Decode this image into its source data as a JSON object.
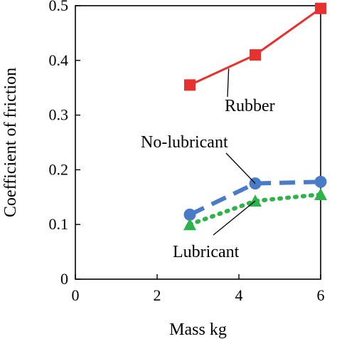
{
  "chart_data": {
    "type": "line",
    "xlabel": "Mass kg",
    "ylabel": "Coefficient of friction",
    "xlim": [
      0,
      6
    ],
    "ylim": [
      0,
      0.5
    ],
    "xticks": [
      0,
      2,
      4,
      6
    ],
    "xtick_labels": [
      "0",
      "2",
      "4",
      "6"
    ],
    "yticks": [
      0,
      0.1,
      0.2,
      0.3,
      0.4,
      0.5
    ],
    "ytick_labels": [
      "0",
      "0.1",
      "0.2",
      "0.3",
      "0.4",
      "0.5"
    ],
    "grid": false,
    "series": [
      {
        "name": "Rubber",
        "x": [
          2.8,
          4.4,
          6.0
        ],
        "y": [
          0.355,
          0.41,
          0.495
        ],
        "color": "#e8302f",
        "line_style": "solid",
        "marker": "square"
      },
      {
        "name": "No-lubricant",
        "x": [
          2.8,
          4.4,
          6.0
        ],
        "y": [
          0.118,
          0.175,
          0.178
        ],
        "color": "#4a7bc8",
        "line_style": "long-dash",
        "marker": "circle"
      },
      {
        "name": "Lubricant",
        "x": [
          2.8,
          4.4,
          6.0
        ],
        "y": [
          0.1,
          0.143,
          0.155
        ],
        "color": "#2db34a",
        "line_style": "dotted",
        "marker": "triangle"
      }
    ],
    "annotations": [
      {
        "text": "Rubber",
        "target_series": "Rubber",
        "target_x": 3.75,
        "target_y": 0.385
      },
      {
        "text": "No-lubricant",
        "target_series": "No-lubricant",
        "target_x": 4.4,
        "target_y": 0.175
      },
      {
        "text": "Lubricant",
        "target_series": "Lubricant",
        "target_x": 4.4,
        "target_y": 0.143
      }
    ]
  }
}
